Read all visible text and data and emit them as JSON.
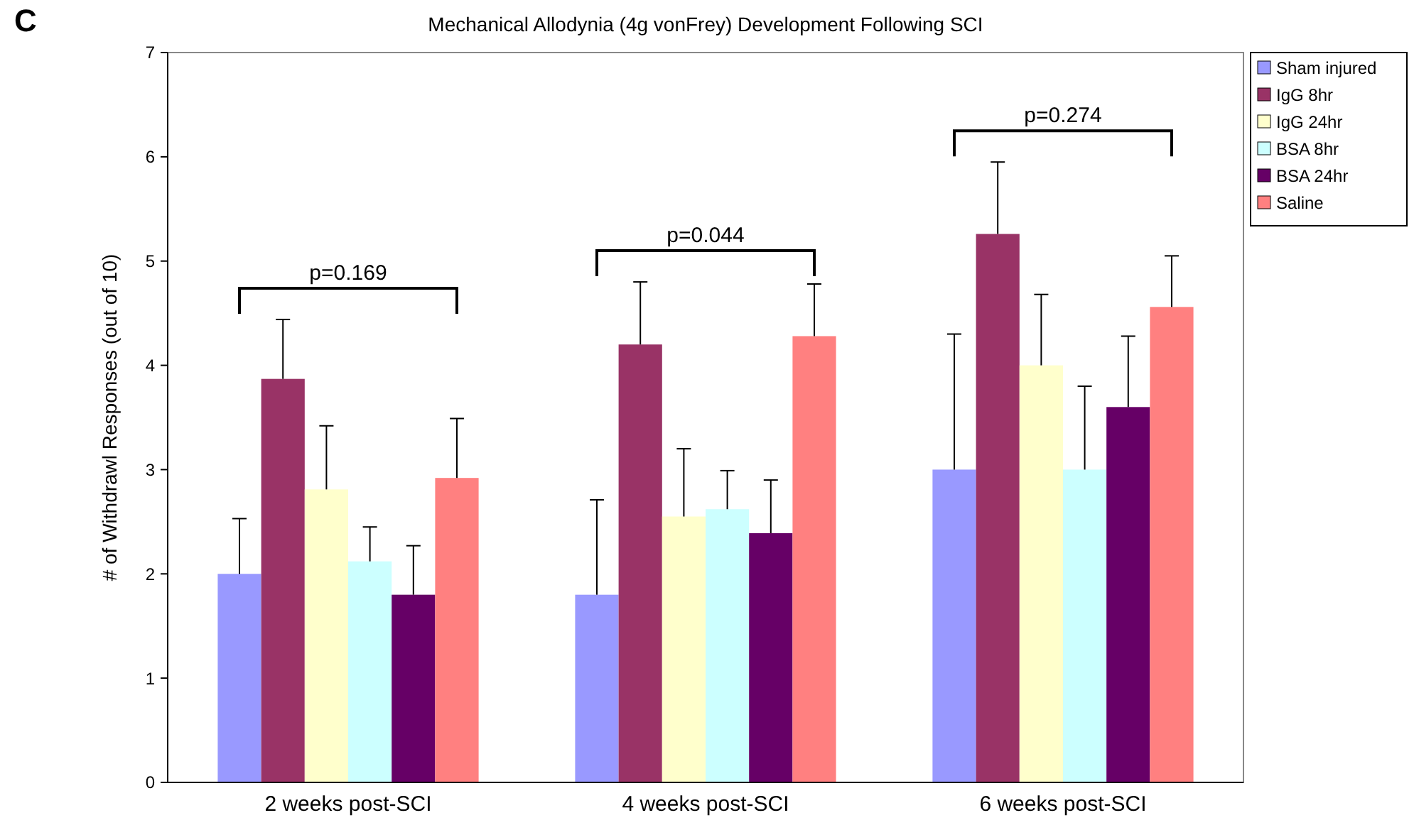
{
  "chart_data": {
    "type": "bar",
    "title": "Mechanical Allodynia (4g vonFrey) Development Following SCI",
    "ylabel": "# of Withdrawl Responses (out of 10)",
    "categories": [
      "2 weeks post-SCI",
      "4 weeks post-SCI",
      "6 weeks post-SCI"
    ],
    "series": [
      {
        "name": "Sham injured",
        "color": "#9999ff",
        "values": [
          2.0,
          1.8,
          3.0
        ],
        "errors": [
          [
            2.0,
            2.53
          ],
          [
            1.8,
            2.71
          ],
          [
            3.0,
            4.3
          ]
        ]
      },
      {
        "name": "IgG 8hr",
        "color": "#993366",
        "values": [
          3.87,
          4.2,
          5.26
        ],
        "errors": [
          [
            3.87,
            4.44
          ],
          [
            4.2,
            4.8
          ],
          [
            5.26,
            5.95
          ]
        ]
      },
      {
        "name": "IgG 24hr",
        "color": "#ffffcc",
        "values": [
          2.81,
          2.55,
          4.0
        ],
        "errors": [
          [
            2.81,
            3.42
          ],
          [
            2.55,
            3.2
          ],
          [
            4.0,
            4.68
          ]
        ]
      },
      {
        "name": "BSA 8hr",
        "color": "#ccffff",
        "values": [
          2.12,
          2.62,
          3.0
        ],
        "errors": [
          [
            2.12,
            2.45
          ],
          [
            2.62,
            2.99
          ],
          [
            3.0,
            3.8
          ]
        ]
      },
      {
        "name": "BSA 24hr",
        "color": "#660066",
        "values": [
          1.8,
          2.39,
          3.6
        ],
        "errors": [
          [
            1.8,
            2.27
          ],
          [
            2.39,
            2.9
          ],
          [
            3.6,
            4.28
          ]
        ]
      },
      {
        "name": "Saline",
        "color": "#ff8080",
        "values": [
          2.92,
          4.28,
          4.56
        ],
        "errors": [
          [
            2.92,
            3.49
          ],
          [
            4.28,
            4.78
          ],
          [
            4.56,
            5.05
          ]
        ]
      }
    ],
    "ylim": [
      0,
      7
    ],
    "yticks": [
      0,
      1,
      2,
      3,
      4,
      5,
      6,
      7
    ],
    "grid": false,
    "legend": "top right",
    "annotations": [
      "C",
      "p=0.169",
      "p=0.044",
      "p=0.274"
    ]
  }
}
